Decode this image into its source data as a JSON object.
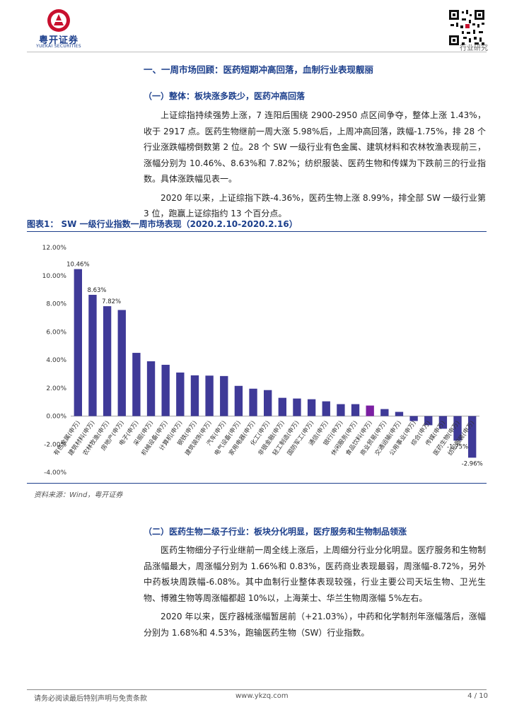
{
  "header": {
    "company_cn": "粤开证券",
    "company_en": "YUEKAI SECURITIES",
    "label": "行业研究"
  },
  "section1": {
    "title": "一、一周市场回顾：医药短期冲高回落，血制行业表现靓丽",
    "sub": "（一）整体：板块涨多跌少，医药冲高回落",
    "p1": "上证综指持续强势上涨，7 连阳后围绕 2900-2950 点区间争夺，整体上涨 1.43%，收于 2917 点。医药生物继前一周大涨 5.98%后，上周冲高回落，跌幅-1.75%，排 28 个行业涨跌幅榜倒数第 2 位。28 个 SW 一级行业有色金属、建筑材料和农林牧渔表现前三，涨幅分别为 10.46%、8.63%和 7.82%；纺织服装、医药生物和传媒为下跌前三的行业指数。具体涨跌幅见表一。",
    "p2": "2020 年以来，上证综指下跌-4.36%，医药生物上涨 8.99%，排全部 SW 一级行业第 3 位，跑赢上证综指约 13 个百分点。"
  },
  "figure": {
    "title": "图表1：  SW 一级行业指数一周市场表现（2020.2.10-2020.2.16）",
    "source": "资料来源：Wind，粤开证券"
  },
  "chart_data": {
    "type": "bar",
    "title": "SW 一级行业指数一周市场表现（2020.2.10-2020.2.16）",
    "categories": [
      "有色金属(申万)",
      "建筑材料(申万)",
      "农林牧渔(申万)",
      "房地产(申万)",
      "电子(申万)",
      "采掘(申万)",
      "机械设备(申万)",
      "计算机(申万)",
      "钢铁(申万)",
      "建筑装饰(申万)",
      "汽车(申万)",
      "电气设备(申万)",
      "家用电器(申万)",
      "化工(申万)",
      "非银金融(申万)",
      "轻工制造(申万)",
      "国防军工(申万)",
      "通信(申万)",
      "银行(申万)",
      "休闲服务(申万)",
      "食品饮料(申万)",
      "商业贸易(申万)",
      "交通运输(申万)",
      "公用事业(申万)",
      "综合(申万)",
      "传媒(申万)",
      "医药生物(申万)",
      "纺织服装(申万)"
    ],
    "values": [
      10.46,
      8.63,
      7.82,
      7.55,
      4.5,
      3.9,
      3.65,
      3.1,
      2.9,
      2.88,
      2.85,
      2.15,
      1.95,
      1.85,
      1.3,
      1.25,
      1.2,
      1.05,
      0.85,
      0.85,
      0.75,
      0.5,
      0.3,
      -0.35,
      -0.65,
      -0.9,
      -1.75,
      -2.96
    ],
    "value_labels": [
      "10.46%",
      "8.63%",
      "7.82%",
      "",
      "",
      "",
      "",
      "",
      "",
      "",
      "",
      "",
      "",
      "",
      "",
      "",
      "",
      "",
      "",
      "",
      "",
      "",
      "",
      "",
      "",
      "",
      "-1.75%",
      "-2.96%"
    ],
    "y_ticks": [
      "-4.00%",
      "-2.00%",
      "0.00%",
      "2.00%",
      "4.00%",
      "6.00%",
      "8.00%",
      "10.00%",
      "12.00%"
    ],
    "ylim": [
      -4,
      12
    ],
    "xlabel": "",
    "ylabel": "",
    "colors": {
      "default": "#3f3a98",
      "highlight": "#7b1fa2"
    },
    "highlight_index": 20
  },
  "section2": {
    "title": "（二）医药生物二级子行业：板块分化明显，医疗服务和生物制品领涨",
    "p1": "医药生物细分子行业继前一周全线上涨后，上周细分行业分化明显。医疗服务和生物制品涨幅最大，周涨幅分别为 1.66%和 0.83%，医药商业表现最弱，周涨幅-8.72%，另外中药板块周跌幅-6.08%。其中血制行业整体表现较强，行业主要公司天坛生物、卫光生物、博雅生物等周涨幅都超 10%以，上海莱士、华兰生物周涨幅 5%左右。",
    "p2": "2020 年以来，医疗器械涨幅暂居前（+21.03%），中药和化学制剂年涨幅落后，涨幅分别为 1.68%和 4.53%，跑输医药生物（SW）行业指数。"
  },
  "footer": {
    "disclaimer": "请务必阅读最后特别声明与免责条款",
    "url": "www.ykzq.com",
    "page": "4 / 10"
  }
}
